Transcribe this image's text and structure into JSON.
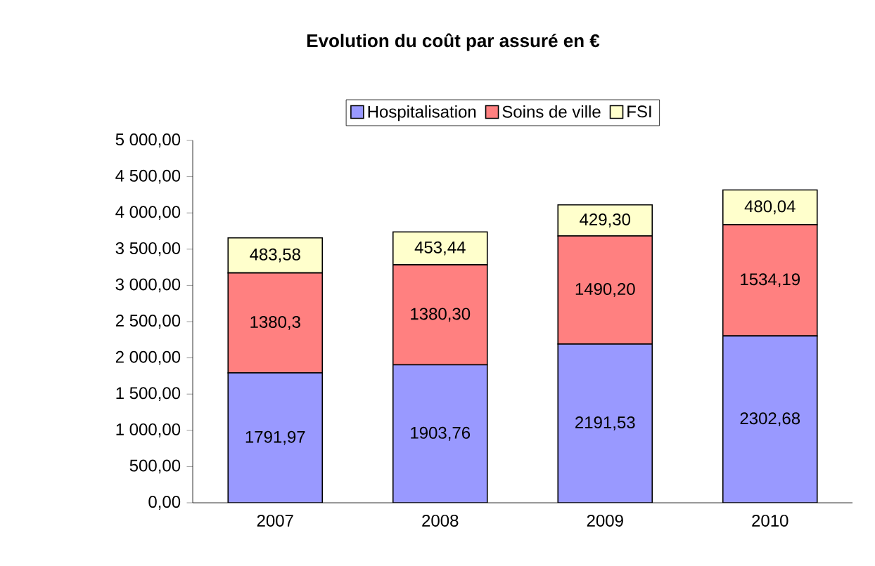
{
  "chart_data": {
    "type": "bar",
    "title": "Evolution du coût par assuré en €",
    "stacked": true,
    "legend": "top",
    "categories": [
      "2007",
      "2008",
      "2009",
      "2010"
    ],
    "ylim": [
      0,
      5000
    ],
    "yticks": [
      {
        "value": 0,
        "label": "0,00"
      },
      {
        "value": 500,
        "label": "500,00"
      },
      {
        "value": 1000,
        "label": "1 000,00"
      },
      {
        "value": 1500,
        "label": "1 500,00"
      },
      {
        "value": 2000,
        "label": "2 000,00"
      },
      {
        "value": 2500,
        "label": "2 500,00"
      },
      {
        "value": 3000,
        "label": "3 000,00"
      },
      {
        "value": 3500,
        "label": "3 500,00"
      },
      {
        "value": 4000,
        "label": "4 000,00"
      },
      {
        "value": 4500,
        "label": "4 500,00"
      },
      {
        "value": 5000,
        "label": "5 000,00"
      }
    ],
    "series": [
      {
        "name": "Hospitalisation",
        "color": "#9999ff",
        "values": [
          1791.97,
          1903.76,
          2191.53,
          2302.68
        ],
        "value_labels": [
          "1791,97",
          "1903,76",
          "2191,53",
          "2302,68"
        ]
      },
      {
        "name": "Soins de ville",
        "color": "#ff8080",
        "values": [
          1380.3,
          1380.3,
          1490.2,
          1534.19
        ],
        "value_labels": [
          "1380,3",
          "1380,30",
          "1490,20",
          "1534,19"
        ]
      },
      {
        "name": "FSI",
        "color": "#ffffcc",
        "values": [
          483.58,
          453.44,
          429.3,
          480.04
        ],
        "value_labels": [
          "483,58",
          "453,44",
          "429,30",
          "480,04"
        ]
      }
    ]
  }
}
